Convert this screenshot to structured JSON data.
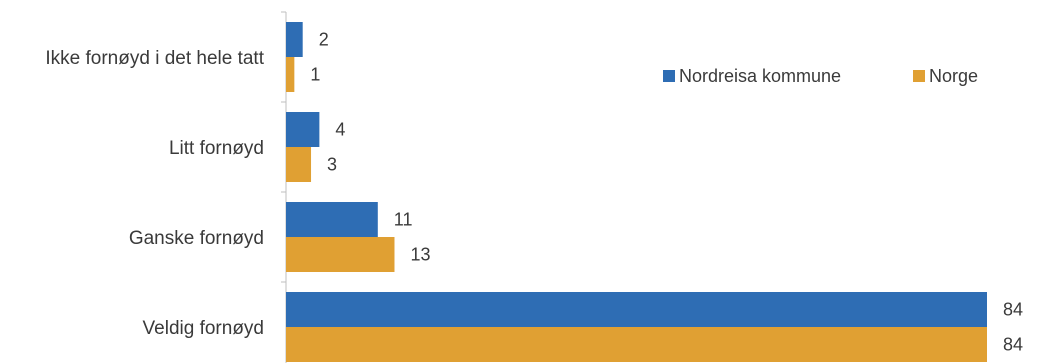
{
  "chart_data": {
    "type": "bar",
    "orientation": "horizontal",
    "categories": [
      "Ikke fornøyd i det hele tatt",
      "Litt fornøyd",
      "Ganske fornøyd",
      "Veldig fornøyd"
    ],
    "series": [
      {
        "name": "Nordreisa kommune",
        "color": "#2e6db4",
        "values": [
          2,
          4,
          11,
          84
        ]
      },
      {
        "name": "Norge",
        "color": "#e0a033",
        "values": [
          1,
          3,
          13,
          84
        ]
      }
    ],
    "xlim": [
      0,
      84
    ],
    "data_labels": true,
    "legend_position": "top-right",
    "grid": false
  }
}
